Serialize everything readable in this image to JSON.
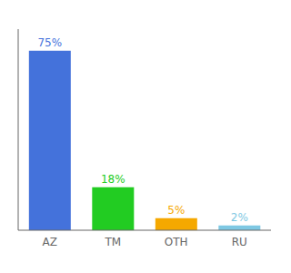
{
  "chart_data": {
    "type": "bar",
    "categories": [
      "AZ",
      "TM",
      "OTH",
      "RU"
    ],
    "values": [
      75,
      18,
      5,
      2
    ],
    "value_labels": [
      "75%",
      "18%",
      "5%",
      "2%"
    ],
    "colors": [
      "#4472db",
      "#22cc22",
      "#f5a800",
      "#7ec8e3"
    ],
    "ylim": [
      0,
      84
    ],
    "data_labels": true,
    "tick_labels": "x",
    "grid": false
  }
}
